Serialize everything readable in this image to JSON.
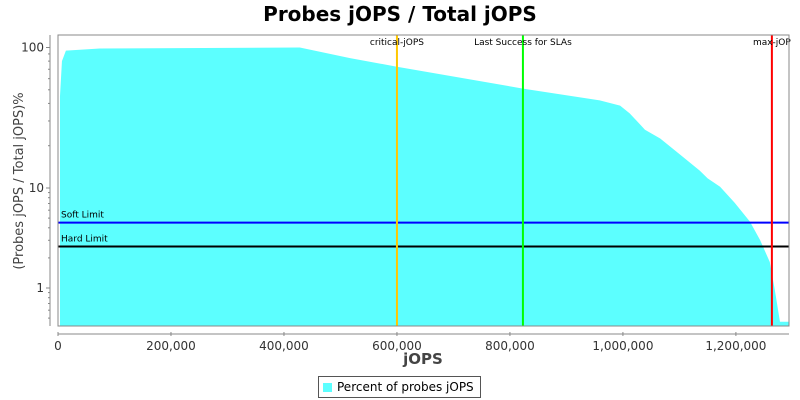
{
  "chart_data": {
    "type": "area",
    "title": "Probes jOPS / Total jOPS",
    "xlabel": "jOPS",
    "ylabel": "(Probes jOPS / Total jOPS)%",
    "xlim": [
      0,
      1294000
    ],
    "ylim": [
      0.42,
      122
    ],
    "yscale": "log",
    "x_ticks": [
      {
        "v": 0,
        "label": "0"
      },
      {
        "v": 200000,
        "label": "200,000"
      },
      {
        "v": 400000,
        "label": "400,000"
      },
      {
        "v": 600000,
        "label": "600,000"
      },
      {
        "v": 800000,
        "label": "800,000"
      },
      {
        "v": 1000000,
        "label": "1,000,000"
      },
      {
        "v": 1200000,
        "label": "1,200,000"
      }
    ],
    "y_ticks": [
      {
        "v": 1,
        "label": "1"
      },
      {
        "v": 10,
        "label": "10"
      },
      {
        "v": 100,
        "label": "100"
      }
    ],
    "grid": false,
    "legend_position": "bottom",
    "series": [
      {
        "name": "Percent of probes jOPS",
        "color": "#5cffff",
        "x": [
          3500,
          7000,
          14000,
          74000,
          428000,
          517000,
          600000,
          823000,
          959000,
          995000,
          1012000,
          1039000,
          1066000,
          1101000,
          1136000,
          1150000,
          1172000,
          1198000,
          1225000,
          1243000,
          1260000,
          1269000,
          1278000,
          1294000
        ],
        "y": [
          45,
          80,
          95,
          98.4,
          100,
          84,
          73,
          51,
          42,
          38.6,
          34,
          26,
          22.5,
          17.3,
          13.3,
          11.7,
          10.2,
          7.1,
          4.6,
          3.0,
          1.82,
          0.95,
          0.46,
          0.46
        ]
      }
    ],
    "horizontal_markers": [
      {
        "label": "Soft Limit",
        "value": 4.5,
        "color": "#0000ff"
      },
      {
        "label": "Hard Limit",
        "value": 2.6,
        "color": "#000000"
      }
    ],
    "vertical_markers": [
      {
        "label": "critical-jOPS",
        "value": 600000,
        "color": "#ffc800"
      },
      {
        "label": "Last Success for SLAs",
        "value": 823000,
        "color": "#00ff00"
      },
      {
        "label": "max-jOP",
        "value": 1263700,
        "color": "#ff0000"
      }
    ]
  }
}
